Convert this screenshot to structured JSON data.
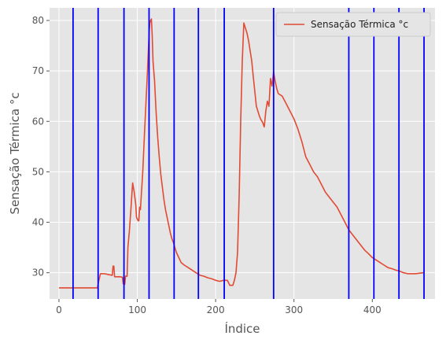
{
  "chart_data": {
    "type": "line",
    "title": "",
    "xlabel": "Índice",
    "ylabel": "Sensação Térmica °c",
    "xlim": [
      -12,
      480
    ],
    "ylim": [
      24.8,
      82.5
    ],
    "xticks": [
      0,
      100,
      200,
      300,
      400
    ],
    "yticks": [
      30,
      40,
      50,
      60,
      70,
      80
    ],
    "grid": true,
    "legend_position": "top-right",
    "background_color": "#e5e5e5",
    "series": [
      {
        "name": "Sensação Térmica °c",
        "color": "#e24a33",
        "points": [
          [
            0,
            27.0
          ],
          [
            10,
            27.0
          ],
          [
            20,
            27.0
          ],
          [
            30,
            27.0
          ],
          [
            40,
            27.0
          ],
          [
            49,
            27.0
          ],
          [
            51,
            28.5
          ],
          [
            53,
            29.8
          ],
          [
            58,
            29.8
          ],
          [
            64,
            29.6
          ],
          [
            68,
            29.5
          ],
          [
            69,
            31.3
          ],
          [
            70,
            31.3
          ],
          [
            71,
            29.2
          ],
          [
            78,
            29.2
          ],
          [
            81,
            29.1
          ],
          [
            82,
            27.8
          ],
          [
            83,
            29.3
          ],
          [
            84,
            27.7
          ],
          [
            85,
            29.3
          ],
          [
            87,
            29.3
          ],
          [
            88,
            35.0
          ],
          [
            90,
            38.5
          ],
          [
            92,
            43.0
          ],
          [
            94,
            47.8
          ],
          [
            96,
            46.0
          ],
          [
            98,
            43.5
          ],
          [
            99,
            41.0
          ],
          [
            101,
            40.3
          ],
          [
            102,
            40.3
          ],
          [
            103,
            43.0
          ],
          [
            104,
            42.5
          ],
          [
            105,
            45.0
          ],
          [
            107,
            50.0
          ],
          [
            109,
            57.0
          ],
          [
            111,
            63.5
          ],
          [
            113,
            70.0
          ],
          [
            115,
            77.5
          ],
          [
            116,
            79.5
          ],
          [
            117,
            80.0
          ],
          [
            118,
            80.3
          ],
          [
            119,
            77.0
          ],
          [
            120,
            72.0
          ],
          [
            122,
            68.0
          ],
          [
            124,
            62.0
          ],
          [
            126,
            57.0
          ],
          [
            128,
            53.0
          ],
          [
            130,
            49.5
          ],
          [
            132,
            47.0
          ],
          [
            134,
            44.5
          ],
          [
            136,
            42.5
          ],
          [
            138,
            41.0
          ],
          [
            140,
            39.5
          ],
          [
            142,
            38.0
          ],
          [
            144,
            36.8
          ],
          [
            146,
            36.0
          ],
          [
            148,
            35.0
          ],
          [
            150,
            34.0
          ],
          [
            153,
            33.0
          ],
          [
            156,
            32.0
          ],
          [
            160,
            31.5
          ],
          [
            165,
            31.0
          ],
          [
            170,
            30.5
          ],
          [
            175,
            30.0
          ],
          [
            180,
            29.5
          ],
          [
            185,
            29.3
          ],
          [
            190,
            29.0
          ],
          [
            195,
            28.8
          ],
          [
            200,
            28.5
          ],
          [
            205,
            28.3
          ],
          [
            210,
            28.5
          ],
          [
            215,
            28.5
          ],
          [
            218,
            27.5
          ],
          [
            222,
            27.5
          ],
          [
            224,
            28.5
          ],
          [
            226,
            30.0
          ],
          [
            228,
            34.0
          ],
          [
            230,
            45.0
          ],
          [
            232,
            60.0
          ],
          [
            234,
            72.0
          ],
          [
            236,
            79.5
          ],
          [
            238,
            78.5
          ],
          [
            240,
            77.5
          ],
          [
            242,
            76.0
          ],
          [
            244,
            74.0
          ],
          [
            246,
            72.0
          ],
          [
            248,
            69.0
          ],
          [
            250,
            66.0
          ],
          [
            252,
            63.0
          ],
          [
            254,
            62.0
          ],
          [
            256,
            61.0
          ],
          [
            258,
            60.3
          ],
          [
            260,
            59.8
          ],
          [
            262,
            58.9
          ],
          [
            264,
            62.0
          ],
          [
            266,
            64.0
          ],
          [
            268,
            63.0
          ],
          [
            270,
            68.5
          ],
          [
            272,
            67.0
          ],
          [
            274,
            69.8
          ],
          [
            276,
            68.0
          ],
          [
            278,
            66.5
          ],
          [
            280,
            65.5
          ],
          [
            285,
            65.0
          ],
          [
            290,
            63.5
          ],
          [
            295,
            62.0
          ],
          [
            300,
            60.5
          ],
          [
            305,
            58.5
          ],
          [
            310,
            56.0
          ],
          [
            315,
            53.0
          ],
          [
            320,
            51.5
          ],
          [
            325,
            50.0
          ],
          [
            330,
            49.0
          ],
          [
            335,
            47.5
          ],
          [
            340,
            46.0
          ],
          [
            345,
            45.0
          ],
          [
            350,
            44.0
          ],
          [
            355,
            43.0
          ],
          [
            360,
            41.5
          ],
          [
            365,
            40.0
          ],
          [
            370,
            38.5
          ],
          [
            375,
            37.5
          ],
          [
            380,
            36.5
          ],
          [
            385,
            35.5
          ],
          [
            390,
            34.5
          ],
          [
            395,
            33.8
          ],
          [
            400,
            33.0
          ],
          [
            405,
            32.5
          ],
          [
            410,
            32.0
          ],
          [
            415,
            31.5
          ],
          [
            420,
            31.0
          ],
          [
            425,
            30.8
          ],
          [
            430,
            30.5
          ],
          [
            435,
            30.3
          ],
          [
            440,
            30.0
          ],
          [
            445,
            29.8
          ],
          [
            450,
            29.8
          ],
          [
            455,
            29.8
          ],
          [
            460,
            29.9
          ],
          [
            465,
            30.0
          ]
        ]
      }
    ],
    "vertical_lines": {
      "color": "#0000ff",
      "x": [
        18,
        50,
        83,
        115,
        147,
        178,
        211,
        274,
        370,
        402,
        434,
        466
      ]
    }
  }
}
